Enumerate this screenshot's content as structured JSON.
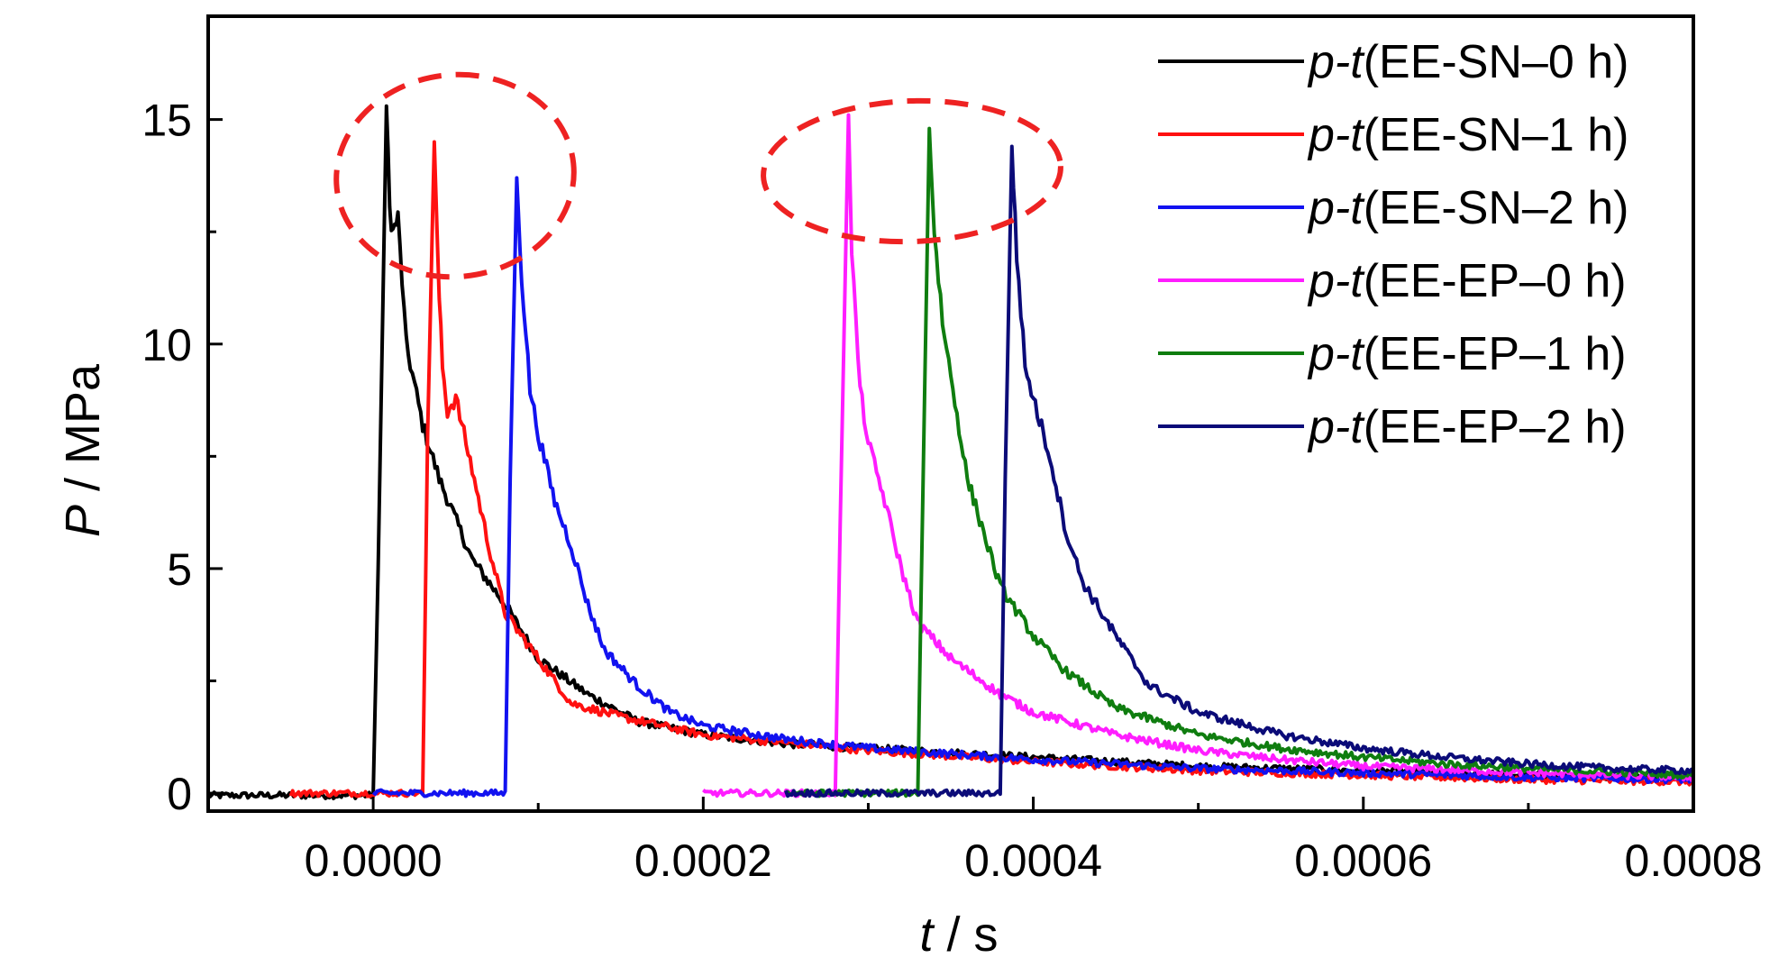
{
  "chart_data": {
    "type": "line",
    "title": "",
    "xlabel_var": "t",
    "xlabel_unit": " / s",
    "ylabel_var": "P",
    "ylabel_unit": " / MPa",
    "xlim": [
      -0.0001,
      0.0008
    ],
    "ylim": [
      -0.4,
      17.3
    ],
    "x_ticks": [
      0.0,
      0.0002,
      0.0004,
      0.0006,
      0.0008
    ],
    "x_tick_labels": [
      "0.0000",
      "0.0002",
      "0.0004",
      "0.0006",
      "0.0008"
    ],
    "y_ticks": [
      0,
      5,
      10,
      15
    ],
    "y_tick_labels": [
      "0",
      "5",
      "10",
      "15"
    ],
    "legend_position": "top-right",
    "series": [
      {
        "name_prefix": "p-t",
        "name_suffix": "(EE-SN–0 h)",
        "color": "#000000",
        "x": [
          -0.0001,
          0.0,
          3e-06,
          8e-06,
          1e-05,
          1.2e-05,
          1.5e-05,
          2e-05,
          3e-05,
          4e-05,
          6e-05,
          8e-05,
          0.0001,
          0.00013,
          0.00016,
          0.0002,
          0.00025,
          0.0003,
          0.0004,
          0.0005,
          0.0006,
          0.0007,
          0.0008
        ],
        "y": [
          -0.05,
          -0.05,
          5.0,
          15.3,
          13.0,
          12.5,
          12.8,
          10.0,
          8.2,
          7.0,
          5.2,
          4.2,
          3.0,
          2.2,
          1.6,
          1.3,
          1.1,
          1.0,
          0.8,
          0.6,
          0.5,
          0.4,
          0.35
        ]
      },
      {
        "name_prefix": "p-t",
        "name_suffix": "(EE-SN–1 h)",
        "color": "#ff1010",
        "x": [
          -5e-05,
          3e-05,
          3.3e-05,
          3.7e-05,
          4e-05,
          4.2e-05,
          4.5e-05,
          5e-05,
          6e-05,
          7e-05,
          8e-05,
          0.0001,
          0.00012,
          0.00015,
          0.0002,
          0.0003,
          0.0004,
          0.0005,
          0.0006,
          0.0007,
          0.0008
        ],
        "y": [
          0.0,
          0.0,
          8.0,
          14.5,
          11.0,
          9.5,
          8.5,
          8.8,
          7.2,
          5.5,
          4.0,
          3.0,
          2.0,
          1.7,
          1.3,
          0.95,
          0.7,
          0.5,
          0.4,
          0.3,
          0.25
        ]
      },
      {
        "name_prefix": "p-t",
        "name_suffix": "(EE-SN–2 h)",
        "color": "#1212f0",
        "x": [
          0.0,
          8e-05,
          8.3e-05,
          8.7e-05,
          9e-05,
          9.5e-05,
          0.0001,
          0.00011,
          0.00012,
          0.00013,
          0.00014,
          0.00016,
          0.00018,
          0.0002,
          0.00025,
          0.0003,
          0.0004,
          0.0005,
          0.0006,
          0.0007,
          0.0008
        ],
        "y": [
          0.0,
          0.0,
          7.0,
          13.7,
          11.5,
          9.0,
          8.0,
          6.5,
          5.5,
          4.2,
          3.2,
          2.4,
          1.8,
          1.5,
          1.2,
          1.0,
          0.75,
          0.55,
          0.45,
          0.35,
          0.3
        ]
      },
      {
        "name_prefix": "p-t",
        "name_suffix": "(EE-EP–0 h)",
        "color": "#ff1dff",
        "x": [
          0.0002,
          0.00028,
          0.000283,
          0.000288,
          0.00029,
          0.000295,
          0.0003,
          0.00031,
          0.00032,
          0.00033,
          0.00035,
          0.00038,
          0.0004,
          0.00045,
          0.0005,
          0.00055,
          0.0006,
          0.0007,
          0.0008
        ],
        "y": [
          0.0,
          0.0,
          6.0,
          15.1,
          12.0,
          9.0,
          7.8,
          6.5,
          5.0,
          3.8,
          3.0,
          2.2,
          1.8,
          1.3,
          0.95,
          0.75,
          0.6,
          0.45,
          0.35
        ]
      },
      {
        "name_prefix": "p-t",
        "name_suffix": "(EE-EP–1 h)",
        "color": "#0f7d0f",
        "x": [
          0.00025,
          0.00033,
          0.000333,
          0.000337,
          0.00034,
          0.000345,
          0.00035,
          0.00036,
          0.00037,
          0.00038,
          0.0004,
          0.00042,
          0.00045,
          0.0005,
          0.00055,
          0.0006,
          0.00065,
          0.0007,
          0.0008
        ],
        "y": [
          0.0,
          0.0,
          6.5,
          14.8,
          12.5,
          10.5,
          9.3,
          7.0,
          5.8,
          4.6,
          3.5,
          2.7,
          1.9,
          1.3,
          1.0,
          0.8,
          0.65,
          0.55,
          0.4
        ]
      },
      {
        "name_prefix": "p-t",
        "name_suffix": "(EE-EP–2 h)",
        "color": "#0b0b78",
        "x": [
          0.00025,
          0.00038,
          0.000383,
          0.000387,
          0.00039,
          0.000395,
          0.0004,
          0.00041,
          0.00042,
          0.00043,
          0.00045,
          0.00047,
          0.0005,
          0.00055,
          0.0006,
          0.00065,
          0.0007,
          0.00075,
          0.0008
        ],
        "y": [
          0.0,
          0.0,
          7.0,
          14.4,
          12.0,
          9.5,
          8.8,
          7.5,
          5.8,
          4.7,
          3.5,
          2.4,
          1.8,
          1.3,
          1.0,
          0.8,
          0.65,
          0.55,
          0.5
        ]
      }
    ]
  }
}
